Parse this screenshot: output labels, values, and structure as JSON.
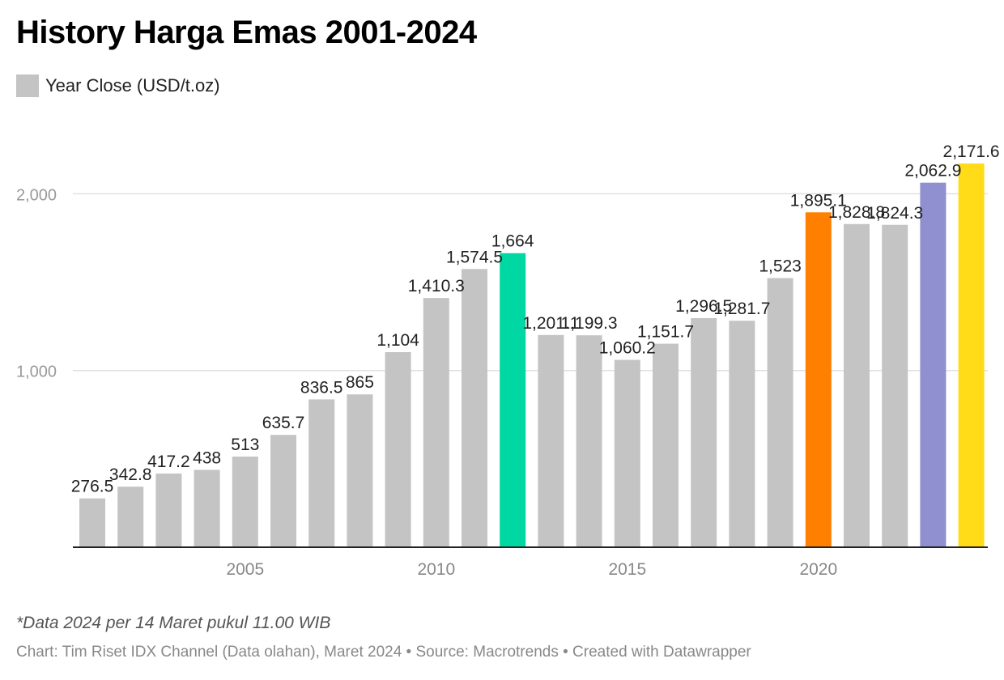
{
  "title": "History Harga Emas 2001-2024",
  "legend": {
    "label": "Year Close (USD/t.oz)",
    "color": "#c4c4c4"
  },
  "footnote": "*Data 2024 per 14 Maret pukul 11.00 WIB",
  "source": "Chart: Tim Riset IDX Channel (Data olahan), Maret 2024 • Source: Macrotrends • Created with Datawrapper",
  "chart_data": {
    "type": "bar",
    "title": "History Harga Emas 2001-2024",
    "categories": [
      2001,
      2002,
      2003,
      2004,
      2005,
      2006,
      2007,
      2008,
      2009,
      2010,
      2011,
      2012,
      2013,
      2014,
      2015,
      2016,
      2017,
      2018,
      2019,
      2020,
      2021,
      2022,
      2023,
      2024
    ],
    "series": [
      {
        "name": "Year Close (USD/t.oz)",
        "values": [
          276.5,
          342.8,
          417.2,
          438,
          513,
          635.7,
          836.5,
          865,
          1104,
          1410.3,
          1574.5,
          1664,
          1201.1,
          1199.3,
          1060.2,
          1151.7,
          1296.5,
          1281.7,
          1523,
          1895.1,
          1828.8,
          1824.3,
          2062.9,
          2171.6
        ],
        "labels": [
          "276.5",
          "342.8",
          "417.2",
          "438",
          "513",
          "635.7",
          "836.5",
          "865",
          "1,104",
          "1,410.3",
          "1,574.5",
          "1,664",
          "1,201.1",
          "1,199.3",
          "1,060.2",
          "1,151.7",
          "1,296.5",
          "1,281.7",
          "1,523",
          "1,895.1",
          "1,828.8",
          "1,824.3",
          "2,062.9",
          "2,171.6"
        ]
      }
    ],
    "bar_colors": [
      "#c4c4c4",
      "#c4c4c4",
      "#c4c4c4",
      "#c4c4c4",
      "#c4c4c4",
      "#c4c4c4",
      "#c4c4c4",
      "#c4c4c4",
      "#c4c4c4",
      "#c4c4c4",
      "#c4c4c4",
      "#00d8a3",
      "#c4c4c4",
      "#c4c4c4",
      "#c4c4c4",
      "#c4c4c4",
      "#c4c4c4",
      "#c4c4c4",
      "#c4c4c4",
      "#ff7f00",
      "#c4c4c4",
      "#c4c4c4",
      "#9090d0",
      "#ffdc17"
    ],
    "ylim": [
      0,
      2171.6
    ],
    "yticks": [
      {
        "value": 1000,
        "label": "1,000"
      },
      {
        "value": 2000,
        "label": "2,000"
      }
    ],
    "xticks": [
      {
        "value": 2005,
        "label": "2005"
      },
      {
        "value": 2010,
        "label": "2010"
      },
      {
        "value": 2015,
        "label": "2015"
      },
      {
        "value": 2020,
        "label": "2020"
      }
    ],
    "grid": true,
    "xlabel": "",
    "ylabel": ""
  }
}
